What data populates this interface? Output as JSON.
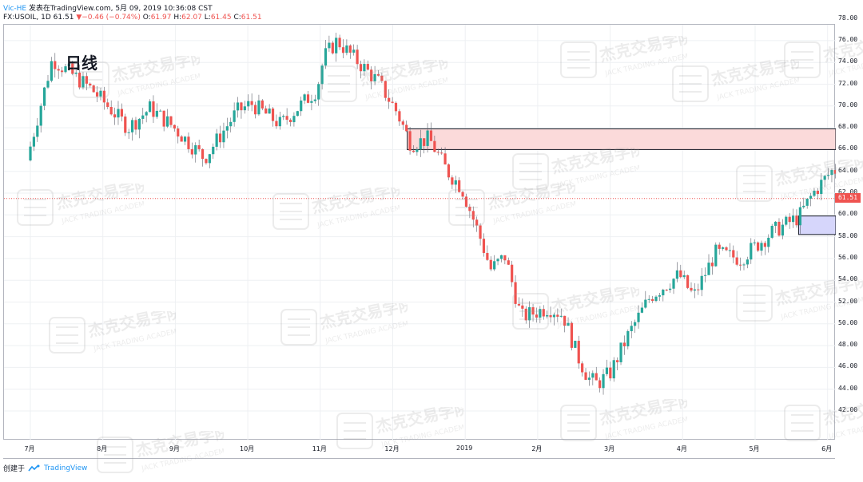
{
  "header": {
    "author": "Vic-HE",
    "published_text": " 发表在TradingView.com, 5月 09, 2019 10:36:08 CST",
    "symbol": "FX:USOIL, 1D 61.51",
    "change": "−0.46 (−0.74%)",
    "open_label": "O:",
    "open": "61.97",
    "high_label": "H:",
    "high": "62.07",
    "low_label": "L:",
    "low": "61.45",
    "close_label": "C:",
    "close": "61.51"
  },
  "timeframe_label": "日线",
  "footer": {
    "created_label": "创建于",
    "brand": "TradingView"
  },
  "watermark": {
    "cn": "杰克交易学院",
    "en": "JACK TRADING ACADEMY"
  },
  "colors": {
    "up": "#26a69a",
    "down": "#ef5350",
    "resistance_fill": "#fbdada",
    "support_fill": "#d6d6fb",
    "current_line": "#ef5350"
  },
  "chart_data": {
    "type": "candlestick",
    "symbol": "FX:USOIL",
    "interval": "1D",
    "ylim": [
      41.0,
      79.0
    ],
    "y_ticks": [
      "42.00",
      "44.00",
      "46.00",
      "48.00",
      "50.00",
      "52.00",
      "54.00",
      "56.00",
      "58.00",
      "60.00",
      "62.00",
      "64.00",
      "66.00",
      "68.00",
      "70.00",
      "72.00",
      "74.00",
      "76.00",
      "78.00"
    ],
    "x_ticks": [
      "7月",
      "8月",
      "9月",
      "10月",
      "11月",
      "12月",
      "2019",
      "2月",
      "3月",
      "4月",
      "5月",
      "6月"
    ],
    "current_price": "61.51",
    "zones": [
      {
        "name": "resistance",
        "from": 66.0,
        "to": 67.9
      },
      {
        "name": "support",
        "from": 58.2,
        "to": 59.9
      }
    ],
    "anchors": [
      {
        "m": 0.0,
        "p": 65.0
      },
      {
        "m": 0.35,
        "p": 74.3
      },
      {
        "m": 0.9,
        "p": 71.5
      },
      {
        "m": 1.4,
        "p": 68.0
      },
      {
        "m": 1.7,
        "p": 69.8
      },
      {
        "m": 2.0,
        "p": 68.2
      },
      {
        "m": 2.45,
        "p": 65.2
      },
      {
        "m": 2.9,
        "p": 69.5
      },
      {
        "m": 3.1,
        "p": 70.2
      },
      {
        "m": 3.5,
        "p": 68.3
      },
      {
        "m": 4.0,
        "p": 71.5
      },
      {
        "m": 4.1,
        "p": 74.5
      },
      {
        "m": 4.28,
        "p": 76.0
      },
      {
        "m": 4.5,
        "p": 74.5
      },
      {
        "m": 4.85,
        "p": 72.2
      },
      {
        "m": 5.1,
        "p": 69.5
      },
      {
        "m": 5.3,
        "p": 66.5
      },
      {
        "m": 5.55,
        "p": 67.0
      },
      {
        "m": 5.8,
        "p": 64.0
      },
      {
        "m": 6.0,
        "p": 62.5
      },
      {
        "m": 6.25,
        "p": 58.0
      },
      {
        "m": 6.4,
        "p": 55.0
      },
      {
        "m": 6.6,
        "p": 56.2
      },
      {
        "m": 6.82,
        "p": 50.6
      },
      {
        "m": 7.2,
        "p": 51.5
      },
      {
        "m": 7.4,
        "p": 50.8
      },
      {
        "m": 7.6,
        "p": 47.0
      },
      {
        "m": 7.75,
        "p": 45.0
      },
      {
        "m": 7.87,
        "p": 44.5
      },
      {
        "m": 8.05,
        "p": 45.5
      },
      {
        "m": 8.3,
        "p": 49.0
      },
      {
        "m": 8.6,
        "p": 52.5
      },
      {
        "m": 9.0,
        "p": 54.5
      },
      {
        "m": 9.2,
        "p": 52.5
      },
      {
        "m": 9.5,
        "p": 56.5
      },
      {
        "m": 9.85,
        "p": 56.0
      },
      {
        "m": 10.3,
        "p": 58.5
      },
      {
        "m": 10.65,
        "p": 59.8
      },
      {
        "m": 10.85,
        "p": 62.0
      },
      {
        "m": 11.1,
        "p": 64.0
      },
      {
        "m": 11.35,
        "p": 64.5
      },
      {
        "m": 11.65,
        "p": 66.0
      },
      {
        "m": 11.95,
        "p": 62.5
      },
      {
        "m": 12.1,
        "p": 61.5
      }
    ]
  }
}
